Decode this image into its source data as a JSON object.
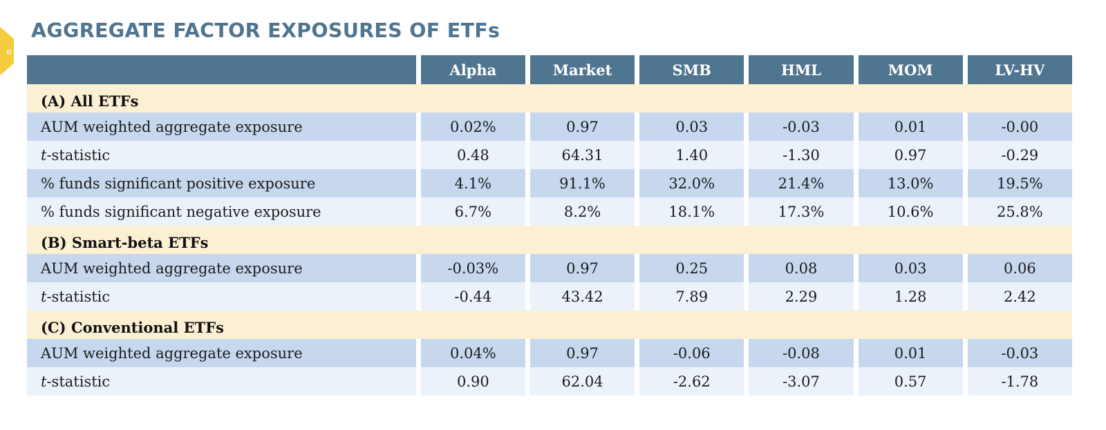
{
  "badge": {
    "text": "e"
  },
  "title": "AGGREGATE FACTOR EXPOSURES OF ETFs",
  "columns": [
    "",
    "Alpha",
    "Market",
    "SMB",
    "HML",
    "MOM",
    "LV-HV"
  ],
  "sections": [
    {
      "title": "(A) All ETFs",
      "rows": [
        {
          "label": "AUM weighted aggregate exposure",
          "values": [
            "0.02%",
            "0.97",
            "0.03",
            "-0.03",
            "0.01",
            "-0.00"
          ]
        },
        {
          "label_italic": "t",
          "label": "-statistic",
          "values": [
            "0.48",
            "64.31",
            "1.40",
            "-1.30",
            "0.97",
            "-0.29"
          ]
        },
        {
          "label": "% funds significant positive exposure",
          "values": [
            "4.1%",
            "91.1%",
            "32.0%",
            "21.4%",
            "13.0%",
            "19.5%"
          ]
        },
        {
          "label": "% funds significant negative exposure",
          "values": [
            "6.7%",
            "8.2%",
            "18.1%",
            "17.3%",
            "10.6%",
            "25.8%"
          ]
        }
      ]
    },
    {
      "title": "(B) Smart-beta ETFs",
      "rows": [
        {
          "label": "AUM weighted aggregate exposure",
          "values": [
            "-0.03%",
            "0.97",
            "0.25",
            "0.08",
            "0.03",
            "0.06"
          ]
        },
        {
          "label_italic": "t",
          "label": "-statistic",
          "values": [
            "-0.44",
            "43.42",
            "7.89",
            "2.29",
            "1.28",
            "2.42"
          ]
        }
      ]
    },
    {
      "title": "(C) Conventional ETFs",
      "rows": [
        {
          "label": "AUM weighted aggregate exposure",
          "values": [
            "0.04%",
            "0.97",
            "-0.06",
            "-0.08",
            "0.01",
            "-0.03"
          ]
        },
        {
          "label_italic": "t",
          "label": "-statistic",
          "values": [
            "0.90",
            "62.04",
            "-2.62",
            "-3.07",
            "0.57",
            "-1.78"
          ]
        }
      ]
    }
  ]
}
